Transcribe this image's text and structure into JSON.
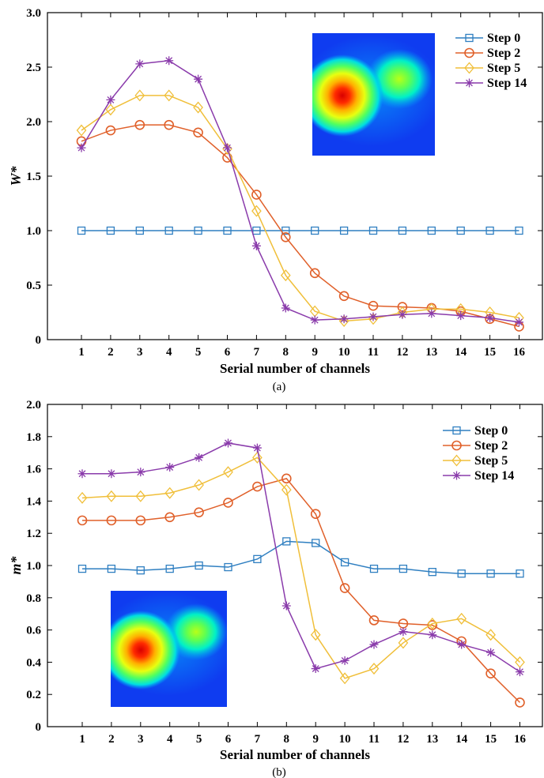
{
  "colors": {
    "Step 0": "#2f7fc1",
    "Step 2": "#e0602a",
    "Step 5": "#f0bf3a",
    "Step 14": "#8a3bab"
  },
  "chart_data": [
    {
      "type": "line",
      "subfigure_label": "(a)",
      "xlabel": "Serial number of channels",
      "ylabel": "W*",
      "x": [
        1,
        2,
        3,
        4,
        5,
        6,
        7,
        8,
        9,
        10,
        11,
        12,
        13,
        14,
        15,
        16
      ],
      "xticks": [
        "1",
        "2",
        "3",
        "4",
        "5",
        "6",
        "7",
        "8",
        "9",
        "10",
        "11",
        "12",
        "13",
        "14",
        "15",
        "16"
      ],
      "ylim": [
        0,
        3.0
      ],
      "yticks": [
        "0",
        "0.5",
        "1.0",
        "1.5",
        "2.0",
        "2.5",
        "3.0"
      ],
      "ytick_values": [
        0,
        0.5,
        1.0,
        1.5,
        2.0,
        2.5,
        3.0
      ],
      "legend_position": "top-right",
      "inset_heatmap_position": "top-center",
      "grid": false,
      "series": [
        {
          "name": "Step 0",
          "marker": "square",
          "values": [
            1.0,
            1.0,
            1.0,
            1.0,
            1.0,
            1.0,
            1.0,
            1.0,
            1.0,
            1.0,
            1.0,
            1.0,
            1.0,
            1.0,
            1.0,
            1.0
          ]
        },
        {
          "name": "Step 2",
          "marker": "circle",
          "values": [
            1.82,
            1.92,
            1.97,
            1.97,
            1.9,
            1.67,
            1.33,
            0.94,
            0.61,
            0.4,
            0.31,
            0.3,
            0.29,
            0.26,
            0.19,
            0.12
          ]
        },
        {
          "name": "Step 5",
          "marker": "diamond",
          "values": [
            1.92,
            2.11,
            2.24,
            2.24,
            2.13,
            1.75,
            1.18,
            0.59,
            0.26,
            0.17,
            0.19,
            0.25,
            0.28,
            0.28,
            0.25,
            0.2
          ]
        },
        {
          "name": "Step 14",
          "marker": "star",
          "values": [
            1.76,
            2.2,
            2.53,
            2.56,
            2.39,
            1.76,
            0.86,
            0.29,
            0.18,
            0.19,
            0.21,
            0.23,
            0.24,
            0.22,
            0.2,
            0.16
          ]
        }
      ]
    },
    {
      "type": "line",
      "subfigure_label": "(b)",
      "xlabel": "Serial number of channels",
      "ylabel": "m*",
      "x": [
        1,
        2,
        3,
        4,
        5,
        6,
        7,
        8,
        9,
        10,
        11,
        12,
        13,
        14,
        15,
        16
      ],
      "xticks": [
        "1",
        "2",
        "3",
        "4",
        "5",
        "6",
        "7",
        "8",
        "9",
        "10",
        "11",
        "12",
        "13",
        "14",
        "15",
        "16"
      ],
      "ylim": [
        0,
        2.0
      ],
      "yticks": [
        "0",
        "0.2",
        "0.4",
        "0.6",
        "0.8",
        "1.0",
        "1.2",
        "1.4",
        "1.6",
        "1.8",
        "2.0"
      ],
      "ytick_values": [
        0,
        0.2,
        0.4,
        0.6,
        0.8,
        1.0,
        1.2,
        1.4,
        1.6,
        1.8,
        2.0
      ],
      "legend_position": "top-right",
      "inset_heatmap_position": "bottom-left",
      "grid": false,
      "series": [
        {
          "name": "Step 0",
          "marker": "square",
          "values": [
            0.98,
            0.98,
            0.97,
            0.98,
            1.0,
            0.99,
            1.04,
            1.15,
            1.14,
            1.02,
            0.98,
            0.98,
            0.96,
            0.95,
            0.95,
            0.95
          ]
        },
        {
          "name": "Step 2",
          "marker": "circle",
          "values": [
            1.28,
            1.28,
            1.28,
            1.3,
            1.33,
            1.39,
            1.49,
            1.54,
            1.32,
            0.86,
            0.66,
            0.64,
            0.63,
            0.53,
            0.33,
            0.15
          ]
        },
        {
          "name": "Step 5",
          "marker": "diamond",
          "values": [
            1.42,
            1.43,
            1.43,
            1.45,
            1.5,
            1.58,
            1.67,
            1.47,
            0.57,
            0.3,
            0.36,
            0.52,
            0.64,
            0.67,
            0.57,
            0.4
          ]
        },
        {
          "name": "Step 14",
          "marker": "star",
          "values": [
            1.57,
            1.57,
            1.58,
            1.61,
            1.67,
            1.76,
            1.73,
            0.75,
            0.36,
            0.41,
            0.51,
            0.59,
            0.57,
            0.51,
            0.46,
            0.34
          ]
        }
      ]
    }
  ]
}
